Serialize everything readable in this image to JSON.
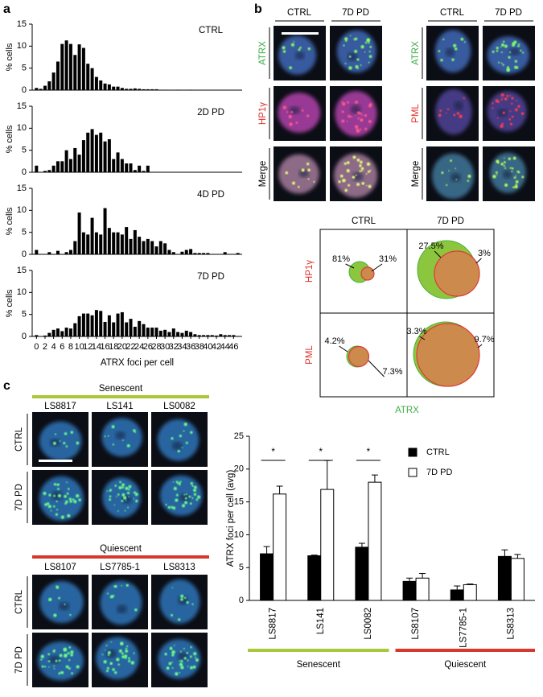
{
  "panel_labels": [
    "a",
    "b",
    "c"
  ],
  "chart_data": [
    {
      "type": "bar",
      "title": "CTRL",
      "y_label": "% cells",
      "color": "#000000",
      "x": [
        0,
        1,
        2,
        3,
        4,
        5,
        6,
        7,
        8,
        9,
        10,
        11,
        12,
        13,
        14,
        15,
        16,
        17,
        18,
        19,
        20,
        21,
        22,
        23,
        24,
        25,
        26,
        27,
        28,
        29,
        30,
        31,
        32,
        33,
        34,
        35,
        36,
        37,
        38,
        39,
        40,
        41,
        42,
        43,
        44,
        45,
        46,
        47
      ],
      "values": [
        0.5,
        0.3,
        1,
        2,
        4,
        6.5,
        10.5,
        11.3,
        10.5,
        8,
        10.4,
        9.6,
        6,
        5,
        3,
        2.2,
        1.5,
        1.3,
        0.8,
        0.8,
        0.5,
        0.3,
        0.3,
        0.4,
        0.3,
        0.2,
        0.2,
        0.2,
        0.2,
        0.1,
        0.1,
        0,
        0,
        0.1,
        0,
        0,
        0.1,
        0,
        0,
        0,
        0,
        0,
        0,
        0,
        0,
        0,
        0,
        0
      ],
      "xlim": [
        -1,
        48
      ],
      "ylim": [
        0,
        15
      ],
      "yticks": [
        0,
        5,
        10,
        15
      ]
    },
    {
      "type": "bar",
      "title": "2D PD",
      "y_label": "% cells",
      "color": "#000000",
      "x": [
        0,
        1,
        2,
        3,
        4,
        5,
        6,
        7,
        8,
        9,
        10,
        11,
        12,
        13,
        14,
        15,
        16,
        17,
        18,
        19,
        20,
        21,
        22,
        23,
        24,
        25,
        26,
        27,
        28,
        29,
        30,
        31,
        32,
        33,
        34,
        35,
        36,
        37,
        38,
        39,
        40,
        41,
        42,
        43,
        44,
        45,
        46,
        47
      ],
      "values": [
        1.5,
        0,
        0.3,
        0.5,
        1.5,
        2.5,
        2.5,
        5,
        3,
        5.5,
        4,
        7.3,
        9,
        9.8,
        8.5,
        9,
        7,
        7.5,
        3,
        4.5,
        3,
        2,
        2,
        0.5,
        1.5,
        0.3,
        1.5,
        0,
        0,
        0,
        0,
        0,
        0,
        0,
        0,
        0,
        0,
        0,
        0,
        0,
        0,
        0,
        0,
        0,
        0,
        0,
        0,
        0
      ],
      "xlim": [
        -1,
        48
      ],
      "ylim": [
        0,
        15
      ],
      "yticks": [
        0,
        5,
        10,
        15
      ]
    },
    {
      "type": "bar",
      "title": "4D PD",
      "y_label": "% cells",
      "color": "#000000",
      "x": [
        0,
        1,
        2,
        3,
        4,
        5,
        6,
        7,
        8,
        9,
        10,
        11,
        12,
        13,
        14,
        15,
        16,
        17,
        18,
        19,
        20,
        21,
        22,
        23,
        24,
        25,
        26,
        27,
        28,
        29,
        30,
        31,
        32,
        33,
        34,
        35,
        36,
        37,
        38,
        39,
        40,
        41,
        42,
        43,
        44,
        45,
        46,
        47
      ],
      "values": [
        1,
        0,
        0,
        0.5,
        0,
        0.8,
        0,
        0.5,
        1,
        3,
        9.5,
        5,
        4.5,
        8.3,
        5,
        4.5,
        10.5,
        6,
        5,
        5,
        4.5,
        6.2,
        3.5,
        5.5,
        4,
        3,
        3.5,
        3,
        1.8,
        3,
        2.5,
        1,
        0.5,
        0,
        0.6,
        1,
        1.2,
        0.3,
        0.3,
        0.3,
        0.3,
        0,
        0,
        0,
        0.5,
        0,
        0,
        0.3
      ],
      "xlim": [
        -1,
        48
      ],
      "ylim": [
        0,
        15
      ],
      "yticks": [
        0,
        5,
        10,
        15
      ]
    },
    {
      "type": "bar",
      "title": "7D PD",
      "y_label": "% cells",
      "x_label": "ATRX foci per cell",
      "color": "#000000",
      "x": [
        0,
        1,
        2,
        3,
        4,
        5,
        6,
        7,
        8,
        9,
        10,
        11,
        12,
        13,
        14,
        15,
        16,
        17,
        18,
        19,
        20,
        21,
        22,
        23,
        24,
        25,
        26,
        27,
        28,
        29,
        30,
        31,
        32,
        33,
        34,
        35,
        36,
        37,
        38,
        39,
        40,
        41,
        42,
        43,
        44,
        45,
        46,
        47
      ],
      "values": [
        0.3,
        0,
        0.2,
        0.8,
        1.5,
        1.8,
        1.2,
        2,
        1.8,
        3,
        4.6,
        5.2,
        5.2,
        4.8,
        6,
        5.8,
        3.3,
        4.8,
        3.2,
        5.2,
        5.5,
        3.2,
        4,
        2.2,
        3.5,
        2.8,
        2,
        2,
        2,
        1.3,
        1.5,
        1,
        1.8,
        1,
        0.8,
        1.3,
        1,
        0.5,
        0.3,
        0.3,
        0.3,
        0.3,
        0.2,
        0.5,
        0.3,
        0.3,
        0.3,
        0.1
      ],
      "xlim": [
        -1,
        48
      ],
      "ylim": [
        0,
        15
      ],
      "yticks": [
        0,
        5,
        10,
        15
      ],
      "xticks": [
        0,
        2,
        4,
        6,
        8,
        10,
        12,
        14,
        16,
        18,
        20,
        22,
        24,
        26,
        28,
        30,
        32,
        34,
        36,
        38,
        40,
        42,
        44,
        46
      ]
    },
    {
      "type": "bar",
      "y_label": "ATRX foci per cell (avg)",
      "categories": [
        "LS8817",
        "LS141",
        "LS0082",
        "LS8107",
        "LS7785-1",
        "LS8313"
      ],
      "series": [
        {
          "name": "CTRL",
          "color": "#000000",
          "values": [
            7.1,
            6.8,
            8.1,
            2.9,
            1.6,
            6.7
          ],
          "errors": [
            1.1,
            0.1,
            0.6,
            0.5,
            0.6,
            1.0
          ]
        },
        {
          "name": "7D PD",
          "color": "#ffffff",
          "values": [
            16.2,
            16.9,
            18.0,
            3.4,
            2.4,
            6.4
          ],
          "errors": [
            1.2,
            4.4,
            1.1,
            0.7,
            0.1,
            0.6
          ]
        }
      ],
      "significance": [
        "*",
        "*",
        "*",
        null,
        null,
        null
      ],
      "groups": [
        {
          "name": "Senescent",
          "color": "#a8c83a"
        },
        {
          "name": "Quiescent",
          "color": "#d6392c"
        }
      ],
      "ylim": [
        0,
        25
      ],
      "yticks": [
        0,
        5,
        10,
        15,
        20,
        25
      ]
    }
  ],
  "panel_b": {
    "left": {
      "columns": [
        "CTRL",
        "7D PD"
      ],
      "rows": [
        "ATRX",
        "HP1γ",
        "Merge"
      ]
    },
    "right": {
      "columns": [
        "CTRL",
        "7D PD"
      ],
      "rows": [
        "ATRX",
        "PML",
        "Merge"
      ]
    },
    "venn": {
      "columns": [
        "CTRL",
        "7D PD"
      ],
      "rows": [
        "HP1γ",
        "PML"
      ],
      "x_label": "ATRX",
      "labels": [
        [
          [
            "81%",
            "31%"
          ],
          [
            "27.5%",
            "3%"
          ]
        ],
        [
          [
            "4.2%",
            "7.3%"
          ],
          [
            "3.3%",
            "9.7%"
          ]
        ]
      ]
    }
  },
  "panel_c": {
    "senescent": {
      "title": "Senescent",
      "columns": [
        "LS8817",
        "LS141",
        "LS0082"
      ],
      "rows": [
        "CTRL",
        "7D PD"
      ]
    },
    "quiescent": {
      "title": "Quiescent",
      "columns": [
        "LS8107",
        "LS7785-1",
        "LS8313"
      ],
      "rows": [
        "CTRL",
        "7D PD"
      ]
    }
  }
}
